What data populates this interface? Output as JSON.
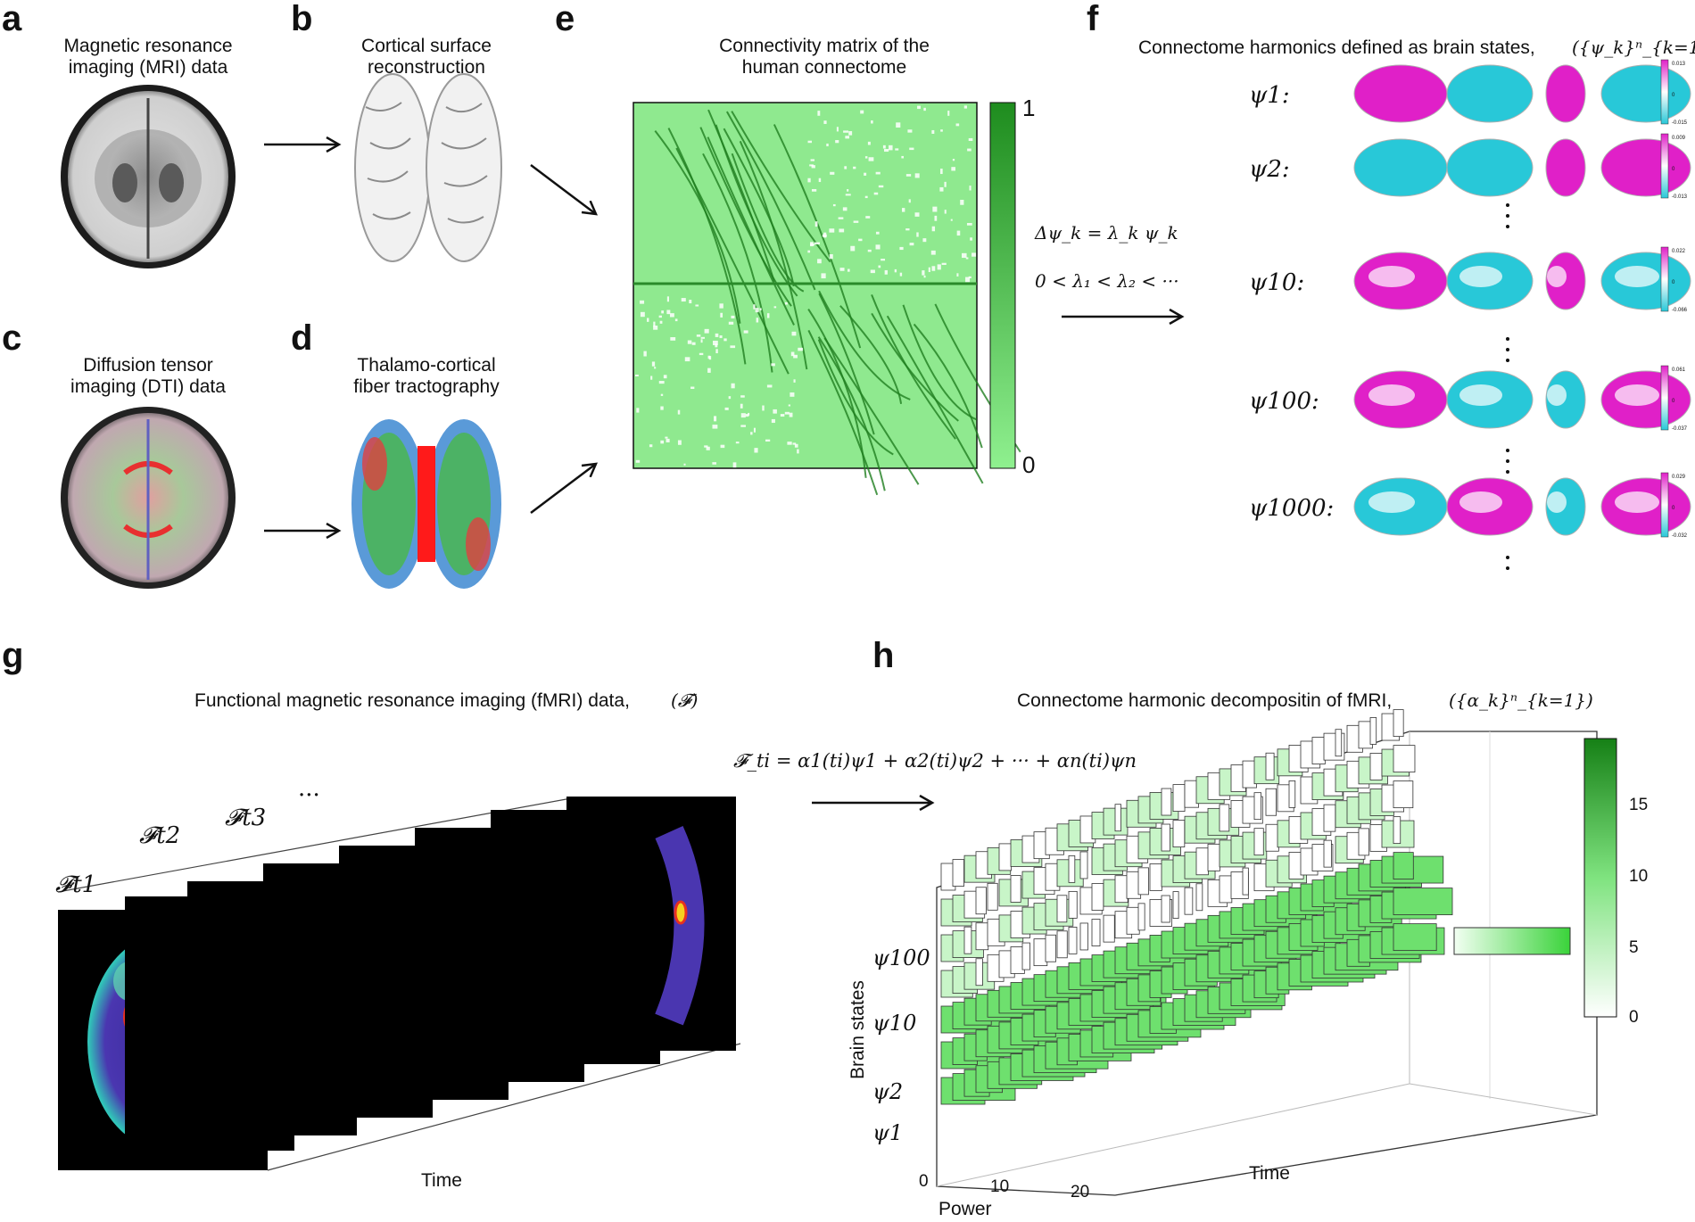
{
  "panels": {
    "a": {
      "label": "a",
      "title_line1": "Magnetic resonance",
      "title_line2": "imaging (MRI) data"
    },
    "b": {
      "label": "b",
      "title_line1": "Cortical surface",
      "title_line2": "reconstruction"
    },
    "c": {
      "label": "c",
      "title_line1": "Diffusion tensor",
      "title_line2": "imaging (DTI) data"
    },
    "d": {
      "label": "d",
      "title_line1": "Thalamo-cortical",
      "title_line2": "fiber tractography"
    },
    "e": {
      "label": "e",
      "title_line1": "Connectivity matrix of the",
      "title_line2": "human connectome",
      "colorbar_max": "1",
      "colorbar_min": "0"
    },
    "f": {
      "label": "f",
      "title": "Connectome harmonics defined as brain states,",
      "title_math": "({ψ_k}ⁿ_{k=1})",
      "equation1": "Δψ_k = λ_k ψ_k",
      "equation2": "0 < λ₁ < λ₂ < ···",
      "rows": [
        {
          "name": "ψ1:",
          "sub": "1",
          "cb_max": "0.013",
          "cb_mid": "0",
          "cb_min": "-0.015"
        },
        {
          "name": "ψ2:",
          "sub": "2",
          "cb_max": "0.009",
          "cb_mid": "0",
          "cb_min": "-0.013"
        },
        {
          "name": "ψ10:",
          "sub": "10",
          "cb_max": "0.022",
          "cb_mid": "0",
          "cb_min": "-0.066"
        },
        {
          "name": "ψ100:",
          "sub": "100",
          "cb_max": "0.061",
          "cb_mid": "0",
          "cb_min": "-0.037"
        },
        {
          "name": "ψ1000:",
          "sub": "1000",
          "cb_max": "0.029",
          "cb_mid": "0",
          "cb_min": "-0.032"
        }
      ]
    },
    "g": {
      "label": "g",
      "title": "Functional magnetic resonance imaging (fMRI) data,",
      "title_math": "(𝓕)",
      "frame_labels": [
        "𝓕t1",
        "𝓕t2",
        "𝓕t3"
      ],
      "ellipsis": "···",
      "axis_label": "Time"
    },
    "h": {
      "label": "h",
      "title": "Connectome harmonic decompositin of fMRI,",
      "title_math": "({α_k}ⁿ_{k=1})",
      "equation": "𝓕_ti = α1(ti)ψ1 + α2(ti)ψ2 + ··· + αn(ti)ψn",
      "ylabel": "Brain states",
      "xlabel": "Power",
      "zlabel": "Time",
      "power_ticks": [
        "0",
        "10",
        "20"
      ],
      "state_labels": [
        "ψ100",
        "ψ10",
        "ψ2",
        "ψ1"
      ],
      "colorbar_ticks": [
        "15",
        "10",
        "5",
        "0"
      ]
    }
  },
  "chart_data": {
    "type": "bar",
    "title": "Connectome harmonic decompositin of fMRI,",
    "xlabel": "Power",
    "ylabel": "Brain states",
    "zlabel": "Time",
    "colorbar_range": [
      0,
      18
    ],
    "colorbar_ticks": [
      0,
      5,
      10,
      15
    ],
    "power_ticks": [
      0,
      10,
      20
    ],
    "categories": [
      "ψ1",
      "ψ2",
      "ψ10",
      "ψ100"
    ]
  },
  "colors": {
    "green_dark": "#1b8a1b",
    "green_light": "#8fe98f",
    "magenta": "#e020c8",
    "cyan": "#28c8d8"
  }
}
